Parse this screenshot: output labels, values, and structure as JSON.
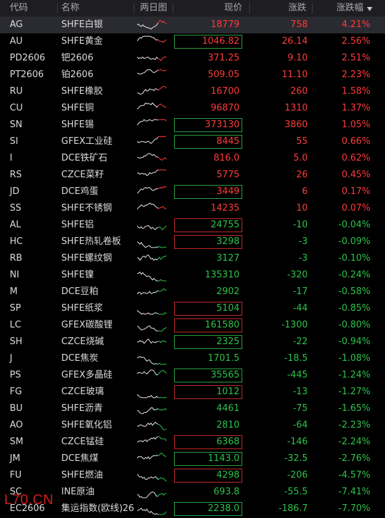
{
  "header": {
    "code": "代码",
    "name": "名称",
    "spark": "两日图",
    "price": "现价",
    "change": "涨跌",
    "pct": "涨跌幅",
    "sort_icon": "sort-desc-icon"
  },
  "colors": {
    "up": "#ff3b3b",
    "down": "#2fc24a",
    "spark": "#e8e8e8"
  },
  "rows": [
    {
      "code": "AG",
      "name": "SHFE白银",
      "price": "18779",
      "change": "758",
      "pct": "4.21%",
      "dir": "up",
      "box": ""
    },
    {
      "code": "AU",
      "name": "SHFE黄金",
      "price": "1046.82",
      "change": "26.14",
      "pct": "2.56%",
      "dir": "up",
      "box": "green"
    },
    {
      "code": "PD2606",
      "name": "钯2606",
      "price": "371.25",
      "change": "9.10",
      "pct": "2.51%",
      "dir": "up",
      "box": ""
    },
    {
      "code": "PT2606",
      "name": "铂2606",
      "price": "509.05",
      "change": "11.10",
      "pct": "2.23%",
      "dir": "up",
      "box": ""
    },
    {
      "code": "RU",
      "name": "SHFE橡胶",
      "price": "16700",
      "change": "260",
      "pct": "1.58%",
      "dir": "up",
      "box": ""
    },
    {
      "code": "CU",
      "name": "SHFE铜",
      "price": "96870",
      "change": "1310",
      "pct": "1.37%",
      "dir": "up",
      "box": ""
    },
    {
      "code": "SN",
      "name": "SHFE锡",
      "price": "373130",
      "change": "3860",
      "pct": "1.05%",
      "dir": "up",
      "box": "green"
    },
    {
      "code": "SI",
      "name": "GFEX工业硅",
      "price": "8445",
      "change": "55",
      "pct": "0.66%",
      "dir": "up",
      "box": "green"
    },
    {
      "code": "I",
      "name": "DCE铁矿石",
      "price": "816.0",
      "change": "5.0",
      "pct": "0.62%",
      "dir": "up",
      "box": ""
    },
    {
      "code": "RS",
      "name": "CZCE菜籽",
      "price": "5775",
      "change": "26",
      "pct": "0.45%",
      "dir": "up",
      "box": ""
    },
    {
      "code": "JD",
      "name": "DCE鸡蛋",
      "price": "3449",
      "change": "6",
      "pct": "0.17%",
      "dir": "up",
      "box": "green"
    },
    {
      "code": "SS",
      "name": "SHFE不锈钢",
      "price": "14235",
      "change": "10",
      "pct": "0.07%",
      "dir": "up",
      "box": ""
    },
    {
      "code": "AL",
      "name": "SHFE铝",
      "price": "24755",
      "change": "-10",
      "pct": "-0.04%",
      "dir": "dn",
      "box": "red"
    },
    {
      "code": "HC",
      "name": "SHFE热轧卷板",
      "price": "3298",
      "change": "-3",
      "pct": "-0.09%",
      "dir": "dn",
      "box": "red"
    },
    {
      "code": "RB",
      "name": "SHFE螺纹钢",
      "price": "3127",
      "change": "-3",
      "pct": "-0.10%",
      "dir": "dn",
      "box": ""
    },
    {
      "code": "NI",
      "name": "SHFE镍",
      "price": "135310",
      "change": "-320",
      "pct": "-0.24%",
      "dir": "dn",
      "box": ""
    },
    {
      "code": "M",
      "name": "DCE豆粕",
      "price": "2902",
      "change": "-17",
      "pct": "-0.58%",
      "dir": "dn",
      "box": ""
    },
    {
      "code": "SP",
      "name": "SHFE纸浆",
      "price": "5104",
      "change": "-44",
      "pct": "-0.85%",
      "dir": "dn",
      "box": "red"
    },
    {
      "code": "LC",
      "name": "GFEX碳酸锂",
      "price": "161580",
      "change": "-1300",
      "pct": "-0.80%",
      "dir": "dn",
      "box": "red"
    },
    {
      "code": "SH",
      "name": "CZCE烧碱",
      "price": "2325",
      "change": "-22",
      "pct": "-0.94%",
      "dir": "dn",
      "box": "green"
    },
    {
      "code": "J",
      "name": "DCE焦炭",
      "price": "1701.5",
      "change": "-18.5",
      "pct": "-1.08%",
      "dir": "dn",
      "box": ""
    },
    {
      "code": "PS",
      "name": "GFEX多晶硅",
      "price": "35565",
      "change": "-445",
      "pct": "-1.24%",
      "dir": "dn",
      "box": "green"
    },
    {
      "code": "FG",
      "name": "CZCE玻璃",
      "price": "1012",
      "change": "-13",
      "pct": "-1.27%",
      "dir": "dn",
      "box": "red"
    },
    {
      "code": "BU",
      "name": "SHFE沥青",
      "price": "4461",
      "change": "-75",
      "pct": "-1.65%",
      "dir": "dn",
      "box": ""
    },
    {
      "code": "AO",
      "name": "SHFE氧化铝",
      "price": "2810",
      "change": "-64",
      "pct": "-2.23%",
      "dir": "dn",
      "box": ""
    },
    {
      "code": "SM",
      "name": "CZCE锰硅",
      "price": "6368",
      "change": "-146",
      "pct": "-2.24%",
      "dir": "dn",
      "box": "red"
    },
    {
      "code": "JM",
      "name": "DCE焦煤",
      "price": "1143.0",
      "change": "-32.5",
      "pct": "-2.76%",
      "dir": "dn",
      "box": "green"
    },
    {
      "code": "FU",
      "name": "SHFE燃油",
      "price": "4298",
      "change": "-206",
      "pct": "-4.57%",
      "dir": "dn",
      "box": "red"
    },
    {
      "code": "SC",
      "name": "INE原油",
      "price": "693.8",
      "change": "-55.5",
      "pct": "-7.41%",
      "dir": "dn",
      "box": ""
    },
    {
      "code": "EC2606",
      "name": "集运指数(欧线)26",
      "price": "2238.0",
      "change": "-186.7",
      "pct": "-7.70%",
      "dir": "dn",
      "box": "green"
    }
  ],
  "watermark": "L70.CN"
}
